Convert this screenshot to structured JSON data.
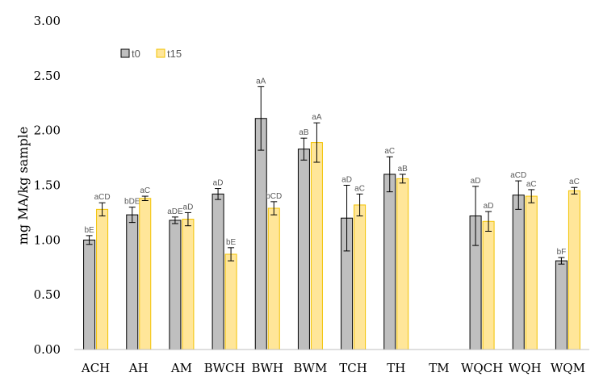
{
  "chart_data": {
    "type": "bar",
    "ylabel": "mg MA/kg sample",
    "ylim": [
      0,
      3.0
    ],
    "yticks": [
      "0.00",
      "0.50",
      "1.00",
      "1.50",
      "2.00",
      "2.50",
      "3.00"
    ],
    "grid": false,
    "legend_position": "top-left",
    "categories": [
      "ACH",
      "AH",
      "AM",
      "BWCH",
      "BWH",
      "BWM",
      "TCH",
      "TH",
      "TM",
      "WQCH",
      "WQH",
      "WQM"
    ],
    "series": [
      {
        "name": "t0",
        "color": "#bfbfbf",
        "stroke": "#000000",
        "values": [
          1.0,
          1.23,
          1.18,
          1.42,
          2.11,
          1.83,
          1.2,
          1.6,
          null,
          1.22,
          1.41,
          0.81
        ],
        "errors": [
          0.04,
          0.07,
          0.03,
          0.05,
          0.29,
          0.1,
          0.3,
          0.16,
          null,
          0.27,
          0.13,
          0.03
        ],
        "labels": [
          "bE",
          "bDE",
          "aDE",
          "aD",
          "aA",
          "aB",
          "aD",
          "aC",
          "",
          "aD",
          "aCD",
          "bF"
        ]
      },
      {
        "name": "t15",
        "color": "#ffe699",
        "stroke": "#f2c200",
        "values": [
          1.28,
          1.38,
          1.19,
          0.87,
          1.29,
          1.89,
          1.32,
          1.56,
          null,
          1.17,
          1.4,
          1.45
        ],
        "errors": [
          0.06,
          0.02,
          0.06,
          0.06,
          0.06,
          0.18,
          0.1,
          0.04,
          null,
          0.09,
          0.06,
          0.03
        ],
        "labels": [
          "aCD",
          "aC",
          "aD",
          "bE",
          "bCD",
          "aA",
          "aC",
          "aB",
          "",
          "aD",
          "aC",
          "aC"
        ]
      }
    ]
  }
}
